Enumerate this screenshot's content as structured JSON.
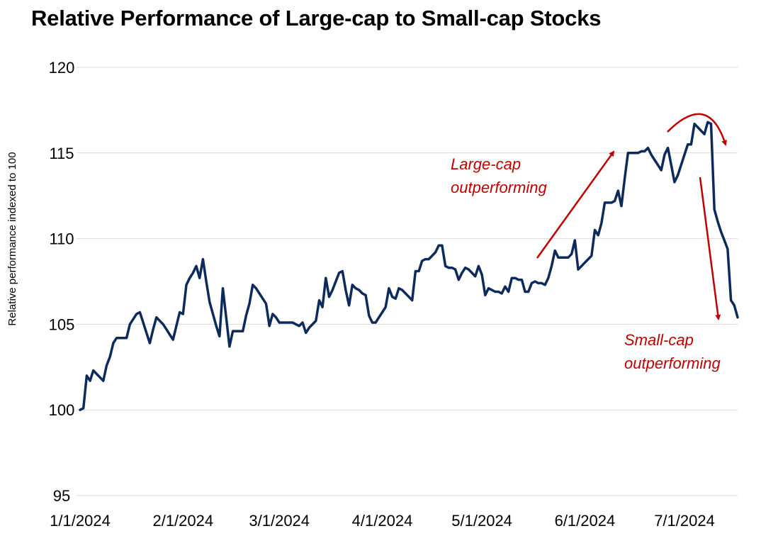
{
  "chart_data": {
    "type": "line",
    "title": "Relative Performance of Large-cap to Small-cap Stocks",
    "xlabel": "",
    "ylabel": "Relative performance indexed to 100",
    "ylim": [
      95,
      120
    ],
    "yticks": [
      95,
      100,
      105,
      110,
      115,
      120
    ],
    "ytick_labels": [
      "95",
      "100",
      "105",
      "110",
      "115",
      "120"
    ],
    "xlim": [
      0,
      198
    ],
    "xtick_labels": [
      "1/1/2024",
      "2/1/2024",
      "3/1/2024",
      "4/1/2024",
      "5/1/2024",
      "6/1/2024",
      "7/1/2024"
    ],
    "xtick_days": [
      0,
      31,
      60,
      91,
      121,
      152,
      182
    ],
    "grid": true,
    "series": [
      {
        "name": "Large-cap / Small-cap",
        "color": "#0d2a5c",
        "x": [
          0,
          1,
          2,
          3,
          4,
          5,
          6,
          7,
          8,
          9,
          10,
          11,
          12,
          13,
          14,
          15,
          16,
          17,
          18,
          19,
          20,
          21,
          22,
          23,
          24,
          25,
          26,
          27,
          28,
          29,
          30,
          31,
          32,
          33,
          34,
          35,
          36,
          37,
          38,
          39,
          40,
          41,
          42,
          43,
          44,
          45,
          46,
          47,
          48,
          49,
          50,
          51,
          52,
          53,
          54,
          55,
          56,
          57,
          58,
          59,
          60,
          61,
          62,
          63,
          64,
          65,
          66,
          67,
          68,
          69,
          70,
          71,
          72,
          73,
          74,
          75,
          76,
          77,
          78,
          79,
          80,
          81,
          82,
          83,
          84,
          85,
          86,
          87,
          88,
          89,
          90,
          91,
          92,
          93,
          94,
          95,
          96,
          97,
          98,
          99,
          100,
          101,
          102,
          103,
          104,
          105,
          106,
          107,
          108,
          109,
          110,
          111,
          112,
          113,
          114,
          115,
          116,
          117,
          118,
          119,
          120,
          121,
          122,
          123,
          124,
          125,
          126,
          127,
          128,
          129,
          130,
          131,
          132,
          133,
          134,
          135,
          136,
          137,
          138,
          139,
          140,
          141,
          142,
          143,
          144,
          145,
          146,
          147,
          148,
          149,
          150,
          151,
          152,
          153,
          154,
          155,
          156,
          157,
          158,
          159,
          160,
          161,
          162,
          163,
          164,
          165,
          166,
          167,
          168,
          169,
          170,
          171,
          172,
          173,
          174,
          175,
          176,
          177,
          178,
          179,
          180,
          181,
          182,
          183,
          184,
          185,
          186,
          187,
          188,
          189,
          190,
          191,
          192,
          193,
          194,
          195,
          196,
          197,
          198
        ],
        "values": [
          100.0,
          100.1,
          102.0,
          101.7,
          102.3,
          102.1,
          101.9,
          101.7,
          102.6,
          103.1,
          103.9,
          104.2,
          104.2,
          104.2,
          104.2,
          105.0,
          105.3,
          105.6,
          105.7,
          105.1,
          104.5,
          103.9,
          104.7,
          105.4,
          105.2,
          105.0,
          104.7,
          104.4,
          104.1,
          104.9,
          105.7,
          105.6,
          107.3,
          107.7,
          108.0,
          108.4,
          107.7,
          108.8,
          107.5,
          106.3,
          105.6,
          104.9,
          104.3,
          107.1,
          105.4,
          103.7,
          104.6,
          104.6,
          104.6,
          104.6,
          105.5,
          106.2,
          107.3,
          107.1,
          106.8,
          106.5,
          106.2,
          104.9,
          105.6,
          105.4,
          105.1,
          105.1,
          105.1,
          105.1,
          105.1,
          105.0,
          104.9,
          105.1,
          104.5,
          104.8,
          105.0,
          105.2,
          106.4,
          106.0,
          107.7,
          106.6,
          107.0,
          107.5,
          108.0,
          108.1,
          107.0,
          106.1,
          107.3,
          107.1,
          107.0,
          106.8,
          106.7,
          105.5,
          105.1,
          105.1,
          105.4,
          105.7,
          106.0,
          107.1,
          106.6,
          106.5,
          107.1,
          107.0,
          106.8,
          106.6,
          106.4,
          108.1,
          108.1,
          108.7,
          108.8,
          108.8,
          109.0,
          109.2,
          109.6,
          109.6,
          108.4,
          108.3,
          108.3,
          108.2,
          107.6,
          108.0,
          108.3,
          108.2,
          108.0,
          107.8,
          108.4,
          107.9,
          106.7,
          107.1,
          107.0,
          106.9,
          106.9,
          106.8,
          107.2,
          106.9,
          107.7,
          107.7,
          107.6,
          107.6,
          106.9,
          106.9,
          107.4,
          107.5,
          107.4,
          107.4,
          107.3,
          107.7,
          108.4,
          109.3,
          108.9,
          108.9,
          108.9,
          108.9,
          109.1,
          109.9,
          108.2,
          108.4,
          108.6,
          108.8,
          109.0,
          110.5,
          110.2,
          110.9,
          112.1,
          112.1,
          112.1,
          112.2,
          112.8,
          111.9,
          113.5,
          115.0,
          115.0,
          115.0,
          115.0,
          115.1,
          115.1,
          115.3,
          114.9,
          114.6,
          114.3,
          114.0,
          114.9,
          115.3,
          114.3,
          113.3,
          113.7,
          114.3,
          114.9,
          115.5,
          115.5,
          116.7,
          116.5,
          116.3,
          116.1,
          116.8,
          116.7,
          111.7,
          111.0,
          110.4,
          109.9,
          109.4,
          106.4,
          106.1,
          105.4
        ]
      }
    ],
    "annotations": [
      {
        "lines": [
          "Large-cap",
          "outperforming"
        ],
        "color": "#c00000"
      },
      {
        "lines": [
          "Small-cap",
          "outperforming"
        ],
        "color": "#c00000"
      }
    ]
  }
}
